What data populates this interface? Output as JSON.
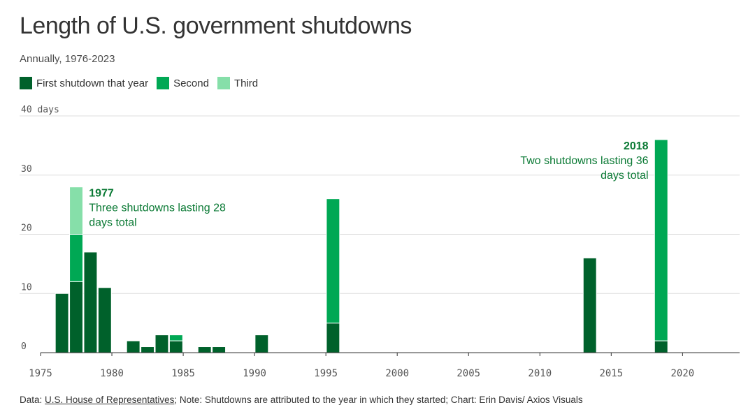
{
  "chart_data": {
    "type": "bar",
    "title": "Length of U.S. government shutdowns",
    "subtitle": "Annually, 1976-2023",
    "ylabel": "days",
    "ylim": [
      0,
      40
    ],
    "y_ticks": [
      0,
      10,
      20,
      30,
      40
    ],
    "y_tick_labels": [
      "0",
      "10",
      "20",
      "30",
      "40 days"
    ],
    "xlim": [
      1975,
      2024
    ],
    "x_ticks": [
      1975,
      1980,
      1985,
      1990,
      1995,
      2000,
      2005,
      2010,
      2015,
      2020
    ],
    "x_tick_labels": [
      "1975",
      "1980",
      "1985",
      "1990",
      "1995",
      "2000",
      "2005",
      "2010",
      "2015",
      "2020"
    ],
    "legend": [
      {
        "label": "First shutdown that year",
        "color": "#00612b"
      },
      {
        "label": "Second",
        "color": "#00a854"
      },
      {
        "label": "Third",
        "color": "#86dfa9"
      }
    ],
    "bars": [
      {
        "year": 1976,
        "segments": [
          10
        ]
      },
      {
        "year": 1977,
        "segments": [
          12,
          8,
          8
        ]
      },
      {
        "year": 1978,
        "segments": [
          17
        ]
      },
      {
        "year": 1979,
        "segments": [
          11
        ]
      },
      {
        "year": 1981,
        "segments": [
          2
        ]
      },
      {
        "year": 1982,
        "segments": [
          1
        ]
      },
      {
        "year": 1983,
        "segments": [
          3
        ]
      },
      {
        "year": 1984,
        "segments": [
          2,
          1
        ]
      },
      {
        "year": 1986,
        "segments": [
          1
        ]
      },
      {
        "year": 1987,
        "segments": [
          1
        ]
      },
      {
        "year": 1990,
        "segments": [
          3
        ]
      },
      {
        "year": 1995,
        "segments": [
          5,
          21
        ]
      },
      {
        "year": 2013,
        "segments": [
          16
        ]
      },
      {
        "year": 2018,
        "segments": [
          2,
          34
        ]
      }
    ],
    "annotations": [
      {
        "year": 1977,
        "value": 28,
        "align": "left",
        "lines": [
          "1977",
          "Three shutdowns lasting 28",
          "days total"
        ]
      },
      {
        "year": 2018,
        "value": 36,
        "align": "right",
        "lines": [
          "2018",
          "Two shutdowns lasting 36",
          "days total"
        ]
      }
    ]
  },
  "footer": {
    "prefix": "Data: ",
    "source": "U.S. House of Representatives",
    "rest": "; Note: Shutdowns are attributed to the year in which they started; Chart: Erin Davis/ Axios Visuals"
  },
  "colors": {
    "annotation": "#0b7a35",
    "grid": "#dddddd",
    "axis": "#555555"
  }
}
